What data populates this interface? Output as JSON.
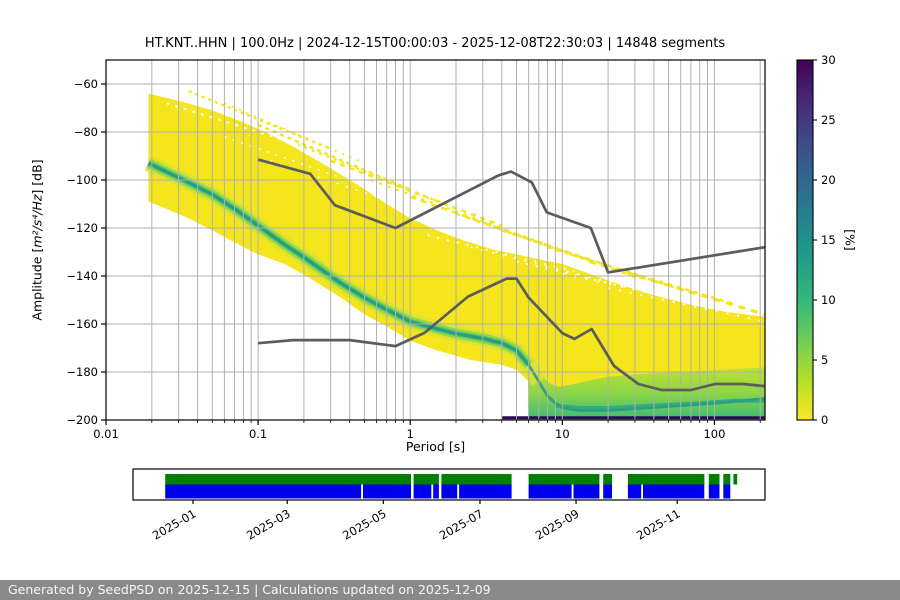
{
  "header": {
    "title": "HT.KNT..HHN | 100.0Hz | 2024-12-15T00:00:03 - 2025-12-08T22:30:03 | 14848 segments"
  },
  "axes": {
    "x_label": "Period [s]",
    "y_label_prefix": "Amplitude [",
    "y_label_math": "m²/s⁴/Hz",
    "y_label_suffix": "] [dB]",
    "colorbar_label": "[%]"
  },
  "footer": {
    "text": "Generated by SeedPSD on 2025-12-15 | Calculations updated on 2025-12-09",
    "background": "#8a8a8a",
    "text_color": "#f7f7f7"
  },
  "chart_data": {
    "type": "heatmap",
    "title": "HT.KNT..HHN | 100.0Hz | 2024-12-15T00:00:03 - 2025-12-08T22:30:03 | 14848 segments",
    "xlabel": "Period [s]",
    "ylabel": "Amplitude [m²/s⁴/Hz] [dB]",
    "x_scale": "log",
    "x_range": [
      0.01,
      215
    ],
    "y_range": [
      -200,
      -50
    ],
    "grid": true,
    "xticks": [
      0.01,
      0.1,
      1,
      10,
      100
    ],
    "xtick_labels": [
      "0.01",
      "0.1",
      "1",
      "10",
      "100"
    ],
    "yticks": [
      -60,
      -80,
      -100,
      -120,
      -140,
      -160,
      -180,
      -200
    ],
    "ytick_labels": [
      "−60",
      "−80",
      "−100",
      "−120",
      "−140",
      "−160",
      "−180",
      "−200"
    ],
    "colorbar": {
      "label": "[%]",
      "ticks": [
        0,
        5,
        10,
        15,
        20,
        25,
        30
      ],
      "tick_labels": [
        "0",
        "5",
        "10",
        "15",
        "20",
        "25",
        "30"
      ],
      "colors_bottom_to_top": [
        "#fde725",
        "#b5de2b",
        "#6ece58",
        "#35b779",
        "#1f9e89",
        "#26828e",
        "#31688e",
        "#3e4989",
        "#482878",
        "#440154"
      ]
    },
    "colors": {
      "cloud_yellow": "#f4e51c",
      "ridge_outer": "#d9e235",
      "ridge_mid": "#90d743",
      "ridge_inner": "#3fbc73",
      "ridge_core": "#21918c",
      "under_green_top": "#cfe32b",
      "under_green_mid": "#8fd744",
      "under_green_bottom": "#41bd72",
      "teal_bottom": "#27a385",
      "dark_strip": "#2c0b55",
      "noise_model_line": "#5c5c5c",
      "gridline": "#b0b0b0"
    },
    "noise_models": {
      "high_noise_model": [
        [
          0.1,
          -91.5
        ],
        [
          0.22,
          -97.4
        ],
        [
          0.32,
          -110.5
        ],
        [
          0.8,
          -120.0
        ],
        [
          3.8,
          -98.1
        ],
        [
          4.6,
          -96.5
        ],
        [
          6.3,
          -101.0
        ],
        [
          7.9,
          -113.5
        ],
        [
          15.4,
          -120.0
        ],
        [
          20.0,
          -138.5
        ],
        [
          215.0,
          -128.0
        ]
      ],
      "low_noise_model": [
        [
          0.1,
          -168.0
        ],
        [
          0.17,
          -166.7
        ],
        [
          0.4,
          -166.7
        ],
        [
          0.8,
          -169.2
        ],
        [
          1.24,
          -163.7
        ],
        [
          2.4,
          -148.6
        ],
        [
          4.3,
          -141.1
        ],
        [
          5.0,
          -141.1
        ],
        [
          6.0,
          -149.0
        ],
        [
          10.0,
          -163.8
        ],
        [
          12.0,
          -166.2
        ],
        [
          15.6,
          -162.1
        ],
        [
          21.9,
          -177.5
        ],
        [
          31.6,
          -185.0
        ],
        [
          45.0,
          -187.5
        ],
        [
          70.0,
          -187.5
        ],
        [
          101.0,
          -185.0
        ],
        [
          154.0,
          -185.0
        ],
        [
          215.0,
          -185.9
        ]
      ]
    },
    "cloud_top_edge": [
      [
        0.019,
        -64
      ],
      [
        0.03,
        -67
      ],
      [
        0.05,
        -71
      ],
      [
        0.08,
        -76
      ],
      [
        0.12,
        -81
      ],
      [
        0.18,
        -87
      ],
      [
        0.28,
        -94
      ],
      [
        0.45,
        -102
      ],
      [
        0.7,
        -110
      ],
      [
        1,
        -116
      ],
      [
        1.5,
        -121
      ],
      [
        2.2,
        -125
      ],
      [
        3.5,
        -129
      ],
      [
        5,
        -131
      ],
      [
        7,
        -133
      ],
      [
        10,
        -135
      ],
      [
        15,
        -139
      ],
      [
        25,
        -144
      ],
      [
        40,
        -148
      ],
      [
        70,
        -152
      ],
      [
        120,
        -155
      ],
      [
        215,
        -157
      ]
    ],
    "cloud_bottom_edge": [
      [
        215,
        -199
      ],
      [
        10,
        -199
      ],
      [
        8,
        -196
      ],
      [
        7,
        -190
      ],
      [
        6,
        -184
      ],
      [
        5,
        -179
      ],
      [
        4,
        -177
      ],
      [
        2.5,
        -175
      ],
      [
        1.5,
        -171
      ],
      [
        1,
        -167
      ],
      [
        0.7,
        -161
      ],
      [
        0.5,
        -156
      ],
      [
        0.35,
        -149
      ],
      [
        0.22,
        -141
      ],
      [
        0.15,
        -135
      ],
      [
        0.1,
        -131
      ],
      [
        0.07,
        -126
      ],
      [
        0.05,
        -121
      ],
      [
        0.035,
        -116
      ],
      [
        0.025,
        -112
      ],
      [
        0.019,
        -109
      ]
    ],
    "mode_ridge": [
      [
        0.019,
        -93
      ],
      [
        0.03,
        -99
      ],
      [
        0.05,
        -106
      ],
      [
        0.07,
        -112
      ],
      [
        0.1,
        -119
      ],
      [
        0.15,
        -127
      ],
      [
        0.22,
        -134
      ],
      [
        0.35,
        -143
      ],
      [
        0.5,
        -149
      ],
      [
        0.7,
        -154
      ],
      [
        1,
        -159
      ],
      [
        1.5,
        -162
      ],
      [
        2,
        -164
      ],
      [
        3,
        -166
      ],
      [
        4,
        -168
      ],
      [
        5,
        -171
      ],
      [
        6,
        -177
      ],
      [
        7,
        -184
      ],
      [
        8,
        -190
      ],
      [
        9,
        -193
      ],
      [
        10,
        -195
      ],
      [
        13,
        -196
      ],
      [
        20,
        -196
      ],
      [
        35,
        -195
      ],
      [
        60,
        -194
      ],
      [
        100,
        -193
      ],
      [
        150,
        -192
      ],
      [
        215,
        -191
      ]
    ],
    "under_green_top_edge": [
      [
        6,
        -175
      ],
      [
        7,
        -180
      ],
      [
        8,
        -184
      ],
      [
        9,
        -186
      ],
      [
        10,
        -186
      ],
      [
        14,
        -184
      ],
      [
        20,
        -182
      ],
      [
        30,
        -181
      ],
      [
        60,
        -180
      ],
      [
        120,
        -179
      ],
      [
        215,
        -178
      ]
    ],
    "under_green_bottom_db": -199,
    "teal_bottom_line": [
      [
        9,
        -194
      ],
      [
        13,
        -195
      ],
      [
        20,
        -195
      ],
      [
        40,
        -194
      ],
      [
        80,
        -193
      ],
      [
        140,
        -192
      ],
      [
        215,
        -192
      ]
    ],
    "dark_bottom_strip": {
      "p1": 4.0,
      "p2": 215,
      "db": -199.1
    },
    "speckles_yellow": [
      {
        "seg": [
          0.035,
          -63,
          0.3,
          -87
        ],
        "dash": "3 4",
        "w": 2.5
      },
      {
        "seg": [
          0.06,
          -68,
          0.5,
          -93
        ],
        "dash": "2 6",
        "w": 2
      },
      {
        "seg": [
          0.1,
          -77,
          1.0,
          -104
        ],
        "dash": "4 4",
        "w": 2.5
      },
      {
        "seg": [
          0.18,
          -85,
          2.0,
          -112
        ],
        "dash": "3 5",
        "w": 2.5
      },
      {
        "seg": [
          0.3,
          -92,
          4.0,
          -119
        ],
        "dash": "5 5",
        "w": 2.5
      },
      {
        "seg": [
          0.55,
          -100,
          8.0,
          -127
        ],
        "dash": "3 6",
        "w": 2
      },
      {
        "seg": [
          1.0,
          -107,
          16,
          -134
        ],
        "dash": "6 5",
        "w": 2.5
      },
      {
        "seg": [
          2.0,
          -114,
          32,
          -141
        ],
        "dash": "4 7",
        "w": 2.5
      },
      {
        "seg": [
          4.0,
          -121,
          70,
          -147
        ],
        "dash": "5 6",
        "w": 2.5
      },
      {
        "seg": [
          8.0,
          -128,
          140,
          -152
        ],
        "dash": "4 5",
        "w": 2.5
      },
      {
        "seg": [
          15,
          -134,
          215,
          -156
        ],
        "dash": "7 6",
        "w": 3
      }
    ],
    "speckles_white": [
      {
        "seg": [
          1.3,
          -123,
          12,
          -138
        ],
        "dash": "2 8",
        "w": 2
      },
      {
        "seg": [
          2.5,
          -128,
          25,
          -144
        ],
        "dash": "2 9",
        "w": 2
      },
      {
        "seg": [
          5,
          -134,
          60,
          -150
        ],
        "dash": "2 8",
        "w": 2
      },
      {
        "seg": [
          10,
          -139,
          140,
          -155
        ],
        "dash": "2 10",
        "w": 2
      },
      {
        "seg": [
          20,
          -145,
          215,
          -159
        ],
        "dash": "2 9",
        "w": 2
      },
      {
        "seg": [
          0.025,
          -68,
          0.2,
          -86
        ],
        "dash": "3 6",
        "w": 2
      },
      {
        "seg": [
          0.06,
          -82,
          0.35,
          -99
        ],
        "dash": "2 7",
        "w": 1.5
      },
      {
        "seg": [
          0.12,
          -92,
          0.6,
          -107
        ],
        "dash": "2 8",
        "w": 1.5
      }
    ],
    "timeline": {
      "green_color": "#008000",
      "blue_color": "#0000f0",
      "tick_positions": [
        0.095,
        0.244,
        0.396,
        0.549,
        0.701,
        0.861
      ],
      "tick_labels": [
        "2025-01",
        "2025-03",
        "2025-05",
        "2025-07",
        "2025-09",
        "2025-11"
      ],
      "green_segments": [
        [
          0.051,
          0.44
        ],
        [
          0.444,
          0.484
        ],
        [
          0.488,
          0.599
        ],
        [
          0.626,
          0.738
        ],
        [
          0.744,
          0.758
        ],
        [
          0.783,
          0.904
        ],
        [
          0.911,
          0.928
        ],
        [
          0.934,
          0.945
        ],
        [
          0.95,
          0.956
        ]
      ],
      "blue_segments": [
        [
          0.051,
          0.361
        ],
        [
          0.364,
          0.44
        ],
        [
          0.444,
          0.472
        ],
        [
          0.475,
          0.484
        ],
        [
          0.488,
          0.513
        ],
        [
          0.516,
          0.599
        ],
        [
          0.626,
          0.694
        ],
        [
          0.697,
          0.738
        ],
        [
          0.744,
          0.758
        ],
        [
          0.783,
          0.804
        ],
        [
          0.807,
          0.904
        ],
        [
          0.911,
          0.928
        ],
        [
          0.934,
          0.945
        ]
      ]
    }
  }
}
